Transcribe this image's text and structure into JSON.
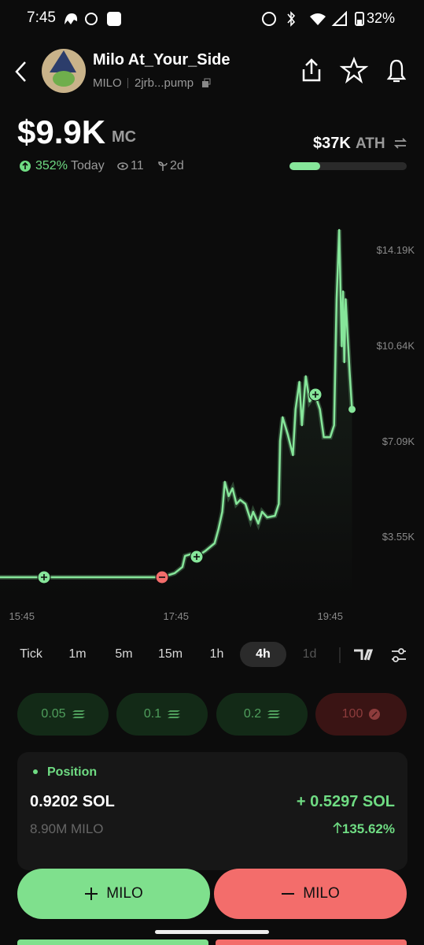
{
  "status_bar": {
    "time": "7:45",
    "battery": "32%"
  },
  "header": {
    "name": "Milo At_Your_Side",
    "ticker": "MILO",
    "address": "2jrb...pump"
  },
  "stats": {
    "market_cap": "$9.9K",
    "market_cap_unit": "MC",
    "ath_value": "$37K",
    "ath_label": "ATH",
    "change": "352%",
    "period": "Today",
    "watchers": "11",
    "age": "2d"
  },
  "chart": {
    "type": "line",
    "color": "#86e69a",
    "x": [
      928,
      962,
      1054,
      1064,
      1070,
      1072,
      1076,
      1081,
      1088,
      1095,
      1098,
      1101,
      1103,
      1106,
      1109,
      1112,
      1115,
      1119,
      1123,
      1125,
      1129,
      1132,
      1136,
      1142,
      1145,
      1146,
      1148,
      1152,
      1156,
      1158,
      1161,
      1163,
      1166,
      1169,
      1173,
      1177,
      1180,
      1185,
      1188,
      1190,
      1192,
      1194,
      1195,
      1196,
      1197,
      1200,
      1202
    ],
    "values": [
      2.03,
      2.03,
      2.03,
      2.18,
      2.41,
      2.82,
      2.88,
      2.79,
      3.01,
      3.29,
      3.81,
      4.46,
      5.57,
      5.04,
      5.33,
      4.75,
      4.9,
      4.75,
      4.16,
      4.46,
      4.02,
      4.46,
      4.25,
      4.31,
      4.75,
      7.09,
      7.97,
      7.32,
      6.56,
      8.26,
      9.28,
      7.67,
      9.49,
      8.55,
      8.84,
      8.26,
      7.23,
      7.23,
      7.67,
      12.35,
      14.92,
      10.6,
      12.64,
      10.01,
      12.35,
      9.72,
      8.26
    ],
    "xlim": [
      928,
      1258
    ],
    "ylim": [
      1.24,
      16.44
    ],
    "xticks": [
      {
        "value": 945,
        "label": "15:45"
      },
      {
        "value": 1065,
        "label": "17:45"
      },
      {
        "value": 1185,
        "label": "19:45"
      }
    ],
    "yticks": [
      {
        "value": 3.55,
        "label": "$3.55K"
      },
      {
        "value": 7.09,
        "label": "$7.09K"
      },
      {
        "value": 10.64,
        "label": "$10.64K"
      },
      {
        "value": 14.19,
        "label": "$14.19K"
      }
    ]
  },
  "timeframes": [
    "Tick",
    "1m",
    "5m",
    "15m",
    "1h",
    "4h",
    "1d"
  ],
  "quick_amounts": [
    "0.05",
    "0.1",
    "0.2",
    "100"
  ],
  "position": {
    "label": "Position",
    "sol": "0.9202 SOL",
    "tokens": "8.90M MILO",
    "pnl": "+ 0.5297 SOL",
    "pnl_pct": "135.62%"
  },
  "actions": {
    "buy": "MILO",
    "sell": "MILO"
  }
}
